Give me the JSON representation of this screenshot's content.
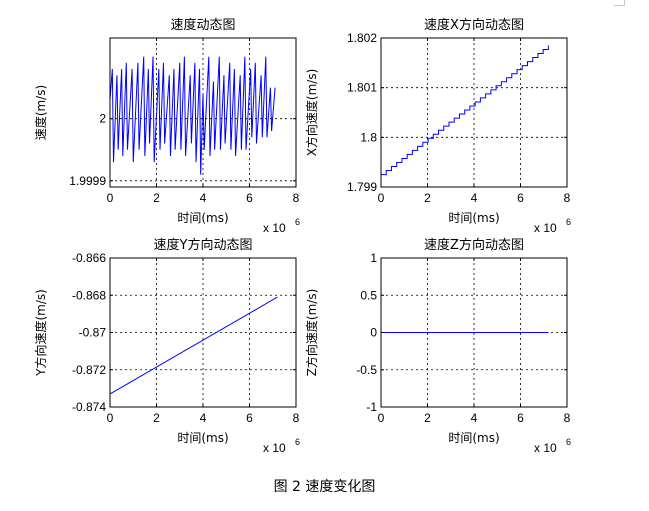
{
  "figure_caption": "图 2 速度变化图",
  "chart_data": [
    {
      "type": "line",
      "title": "速度动态图",
      "xlabel": "时间(ms)",
      "ylabel": "速度(m/s)",
      "x_multiplier": "x 10",
      "x_multiplier_exp": "6",
      "xlim": [
        0,
        8
      ],
      "ylim": [
        1.99989,
        2.00013
      ],
      "xticks": [
        0,
        2,
        4,
        6,
        8
      ],
      "xtick_labels": [
        "0",
        "2",
        "4",
        "6",
        "8"
      ],
      "yticks": [
        1.9999,
        2.0
      ],
      "ytick_labels": [
        "1.9999",
        "2"
      ],
      "grid": true,
      "series": [
        {
          "color": "#0000ff",
          "x": [
            0.0,
            0.1,
            0.15,
            0.3,
            0.35,
            0.5,
            0.55,
            0.7,
            0.75,
            0.95,
            1.0,
            1.2,
            1.25,
            1.45,
            1.5,
            1.65,
            1.7,
            1.85,
            1.9,
            2.1,
            2.15,
            2.3,
            2.35,
            2.55,
            2.6,
            2.75,
            2.8,
            3.0,
            3.05,
            3.2,
            3.25,
            3.45,
            3.5,
            3.65,
            3.7,
            3.85,
            3.9,
            4.0,
            4.05,
            4.25,
            4.3,
            4.45,
            4.5,
            4.7,
            4.75,
            4.9,
            4.95,
            5.15,
            5.2,
            5.35,
            5.4,
            5.6,
            5.65,
            5.8,
            5.85,
            6.05,
            6.1,
            6.25,
            6.3,
            6.5,
            6.55,
            6.7,
            6.75,
            6.9,
            6.95,
            7.1
          ],
          "y": [
            2.00003,
            2.00008,
            1.99993,
            2.00007,
            1.99995,
            2.00008,
            1.99994,
            2.00009,
            1.99995,
            2.00008,
            1.99993,
            2.00009,
            1.99995,
            2.0001,
            1.99994,
            2.00008,
            1.99996,
            2.0001,
            1.99993,
            2.00008,
            1.99995,
            2.00009,
            1.99996,
            2.00007,
            1.99994,
            2.00008,
            1.99995,
            2.00009,
            1.99995,
            2.0001,
            1.99994,
            2.00007,
            1.99996,
            2.00009,
            1.99993,
            2.00008,
            1.99991,
            2.00004,
            1.99995,
            2.0001,
            1.99994,
            2.00006,
            1.99995,
            2.0001,
            1.99995,
            2.00007,
            1.99996,
            2.00009,
            1.99995,
            2.00008,
            1.99994,
            2.00007,
            1.99995,
            2.0001,
            1.99995,
            2.00008,
            1.99997,
            2.00009,
            1.99996,
            2.00007,
            1.99997,
            2.0001,
            1.99997,
            2.00005,
            1.99998,
            2.00005
          ]
        }
      ]
    },
    {
      "type": "line",
      "title": "速度X方向动态图",
      "xlabel": "时间(ms)",
      "ylabel": "X方向速度(m/s)",
      "x_multiplier": "x 10",
      "x_multiplier_exp": "6",
      "xlim": [
        0,
        8
      ],
      "ylim": [
        1.799,
        1.802
      ],
      "xticks": [
        0,
        2,
        4,
        6,
        8
      ],
      "xtick_labels": [
        "0",
        "2",
        "4",
        "6",
        "8"
      ],
      "yticks": [
        1.799,
        1.8,
        1.801,
        1.802
      ],
      "ytick_labels": [
        "1.799",
        "1.8",
        "1.801",
        "1.802"
      ],
      "grid": true,
      "series": [
        {
          "color": "#0000ff",
          "step": true,
          "x": [
            0.0,
            7.2
          ],
          "y": [
            1.79925,
            1.80185
          ]
        }
      ]
    },
    {
      "type": "line",
      "title": "速度Y方向动态图",
      "xlabel": "时间(ms)",
      "ylabel": "Y方向速度(m/s)",
      "x_multiplier": "x 10",
      "x_multiplier_exp": "6",
      "xlim": [
        0,
        8
      ],
      "ylim": [
        -0.874,
        -0.866
      ],
      "xticks": [
        0,
        2,
        4,
        6,
        8
      ],
      "xtick_labels": [
        "0",
        "2",
        "4",
        "6",
        "8"
      ],
      "yticks": [
        -0.874,
        -0.872,
        -0.87,
        -0.868,
        -0.866
      ],
      "ytick_labels": [
        "-0.874",
        "-0.872",
        "-0.87",
        "-0.868",
        "-0.866"
      ],
      "grid": true,
      "series": [
        {
          "color": "#0000ff",
          "x": [
            0.0,
            7.2
          ],
          "y": [
            -0.8733,
            -0.8681
          ]
        }
      ]
    },
    {
      "type": "line",
      "title": "速度Z方向动态图",
      "xlabel": "时间(ms)",
      "ylabel": "Z方向速度(m/s)",
      "x_multiplier": "x 10",
      "x_multiplier_exp": "6",
      "xlim": [
        0,
        8
      ],
      "ylim": [
        -1,
        1
      ],
      "xticks": [
        0,
        2,
        4,
        6,
        8
      ],
      "xtick_labels": [
        "0",
        "2",
        "4",
        "6",
        "8"
      ],
      "yticks": [
        -1,
        -0.5,
        0,
        0.5,
        1
      ],
      "ytick_labels": [
        "-1",
        "-0.5",
        "0",
        "0.5",
        "1"
      ],
      "grid": true,
      "series": [
        {
          "color": "#0000ff",
          "x": [
            0.0,
            7.2
          ],
          "y": [
            0,
            0
          ]
        }
      ]
    }
  ]
}
